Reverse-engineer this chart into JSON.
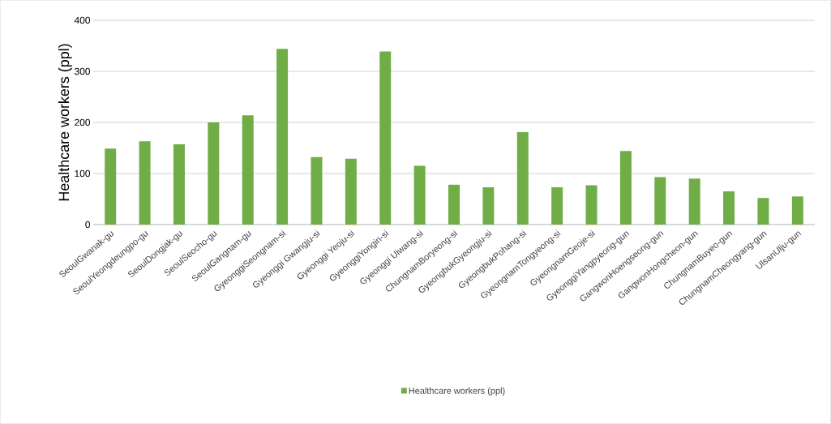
{
  "chart_data": {
    "type": "bar",
    "categories": [
      "SeoulGwanak-gu",
      "SeoulYeongdeungpo-gu",
      "SeoulDongjak-gu",
      "SeoulSeocho-gu",
      "SeoulGangnam-gu",
      "GyeonggiSeongnam-si",
      "Gyeonggi Gwangju-si",
      "Gyeonggi Yeoju-si",
      "GyeonggiYongin-si",
      "Gyeonggi Uiwang-si",
      "ChungnamBoryeong-si",
      "GyeongbukGyeongju-si",
      "GyeongbukPohang-si",
      "GyeongnamTongyeong-si",
      "GyeongnamGeoje-si",
      "GyeonggiYangpyeong-gun",
      "GangwonHoengseong-gun",
      "GangwonHongcheon-gun",
      "ChungnamBuyeo-gun",
      "ChungnamCheongyang-gun",
      "UlsanUlju-gun"
    ],
    "series": [
      {
        "name": "Healthcare workers (ppl)",
        "color": "#70ad47",
        "values": [
          149,
          163,
          157,
          200,
          214,
          344,
          132,
          129,
          339,
          115,
          78,
          73,
          181,
          73,
          77,
          144,
          93,
          90,
          65,
          52,
          55
        ]
      }
    ],
    "ylabel": "Healthcare workers (ppl)",
    "ylim": [
      0,
      400
    ],
    "yticks": [
      0,
      100,
      200,
      300,
      400
    ],
    "grid": "y",
    "legend": "bottom"
  }
}
